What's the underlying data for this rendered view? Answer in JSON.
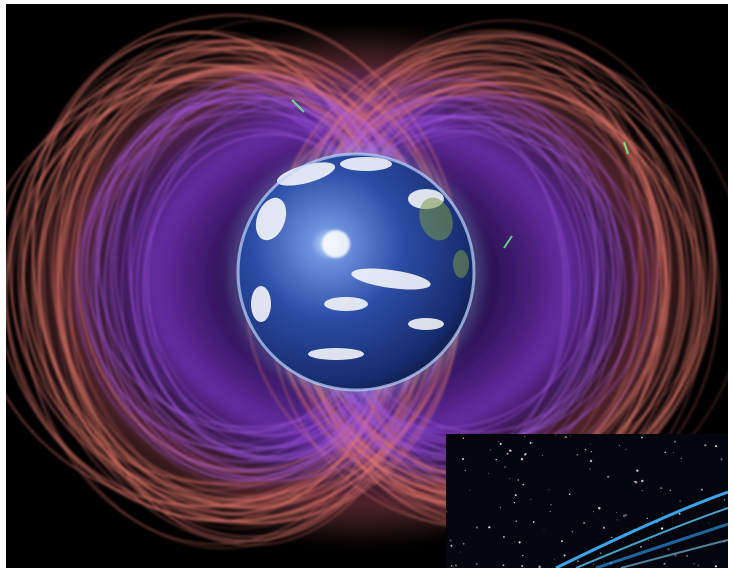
{
  "image": {
    "subject": "earth-radiation-belts",
    "colors": {
      "background": "#000000",
      "outer_belt": "#e87a6e",
      "inner_belt": "#8a3bd9",
      "earth_ocean": "#2d4fa8",
      "earth_clouds": "#ffffff",
      "inset_sky": "#05060d",
      "inset_arc": "#3fb6ff"
    }
  }
}
